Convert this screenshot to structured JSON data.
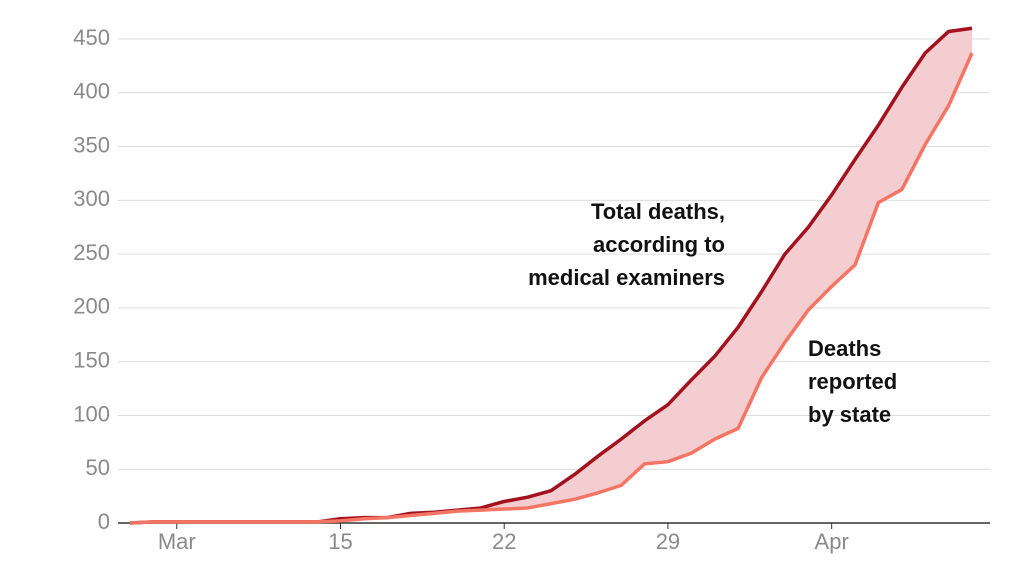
{
  "chart_data": {
    "type": "line",
    "categories": [
      null,
      null,
      "Mar",
      null,
      null,
      null,
      null,
      null,
      null,
      "15",
      null,
      null,
      null,
      null,
      null,
      null,
      "22",
      null,
      null,
      null,
      null,
      null,
      null,
      "29",
      null,
      null,
      null,
      null,
      null,
      null,
      "Apr",
      null,
      null,
      null,
      null,
      null,
      null
    ],
    "series": [
      {
        "name": "Total deaths, according to medical examiners",
        "color": "#a3101e",
        "values": [
          0,
          1,
          1,
          1,
          1,
          1,
          1,
          1,
          1,
          4,
          5,
          5,
          9,
          10,
          12,
          14,
          20,
          24,
          30,
          45,
          62,
          78,
          95,
          110,
          133,
          155,
          182,
          215,
          250,
          275,
          305,
          338,
          370,
          405,
          437,
          457,
          460
        ]
      },
      {
        "name": "Deaths reported by state",
        "color": "#f47564",
        "values": [
          0,
          1,
          1,
          1,
          1,
          1,
          1,
          1,
          1,
          2,
          4,
          5,
          7,
          9,
          11,
          12,
          13,
          14,
          18,
          22,
          28,
          35,
          55,
          57,
          65,
          78,
          88,
          135,
          168,
          198,
          220,
          240,
          298,
          310,
          352,
          388,
          437
        ]
      }
    ],
    "annotations": [
      {
        "lines": [
          "Total deaths,",
          "according to",
          "medical examiners"
        ]
      },
      {
        "lines": [
          "Deaths",
          "reported",
          "by state"
        ]
      }
    ],
    "fill_between": "#f4cdd0",
    "ylim": [
      0,
      450
    ],
    "yticks": [
      0,
      50,
      100,
      150,
      200,
      250,
      300,
      350,
      400,
      450
    ],
    "grid": true
  }
}
